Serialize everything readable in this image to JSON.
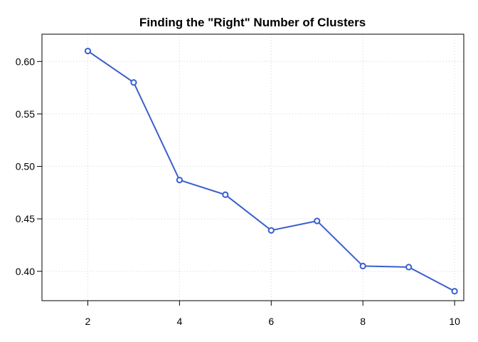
{
  "chart_data": {
    "type": "line",
    "title": "Finding the \"Right\" Number of Clusters",
    "xlabel": "",
    "ylabel": "",
    "x": [
      2,
      3,
      4,
      5,
      6,
      7,
      8,
      9,
      10
    ],
    "series": [
      {
        "values": [
          0.61,
          0.58,
          0.487,
          0.473,
          0.439,
          0.448,
          0.405,
          0.404,
          0.381
        ]
      }
    ],
    "xlim": [
      1,
      10.2
    ],
    "ylim": [
      0.372,
      0.626
    ],
    "xticks": [
      2,
      4,
      6,
      8,
      10
    ],
    "yticks": [
      0.4,
      0.45,
      0.5,
      0.55,
      0.6
    ],
    "xtick_labels": [
      "2",
      "4",
      "6",
      "8",
      "10"
    ],
    "ytick_labels": [
      "0.40",
      "0.45",
      "0.50",
      "0.55",
      "0.60"
    ],
    "grid": true,
    "line_color": "#3a5fcd",
    "marker": "open-circle"
  }
}
